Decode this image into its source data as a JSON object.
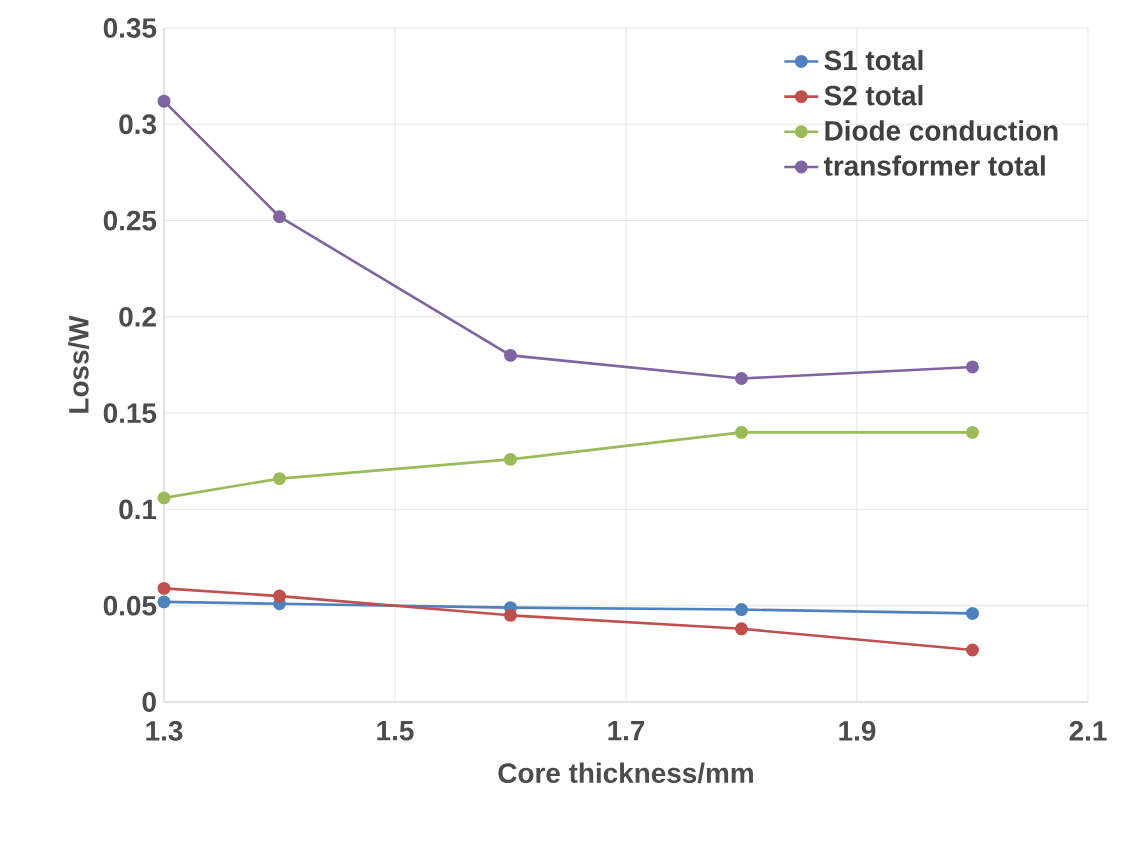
{
  "chart_data": {
    "type": "line",
    "xlabel": "Core thickness/mm",
    "ylabel": "Loss/W",
    "x": [
      1.3,
      1.4,
      1.6,
      1.8,
      2.0
    ],
    "series": [
      {
        "name": "S1 total",
        "color": "#4f81bd",
        "values": [
          0.052,
          0.051,
          0.049,
          0.048,
          0.046
        ]
      },
      {
        "name": "S2 total",
        "color": "#c0504d",
        "values": [
          0.059,
          0.055,
          0.045,
          0.038,
          0.027
        ]
      },
      {
        "name": "Diode conduction",
        "color": "#9bbb59",
        "values": [
          0.106,
          0.116,
          0.126,
          0.14,
          0.14
        ]
      },
      {
        "name": "transformer total",
        "color": "#8064a2",
        "values": [
          0.312,
          0.252,
          0.18,
          0.168,
          0.174
        ]
      }
    ],
    "xlim": [
      1.3,
      2.1
    ],
    "xticks": [
      1.3,
      1.5,
      1.7,
      1.9,
      2.1
    ],
    "ylim": [
      0,
      0.35
    ],
    "yticks": [
      0,
      0.05,
      0.1,
      0.15,
      0.2,
      0.25,
      0.3,
      0.35
    ],
    "grid": true,
    "legend": "top right",
    "marker": "circle",
    "line_style": "solid"
  }
}
